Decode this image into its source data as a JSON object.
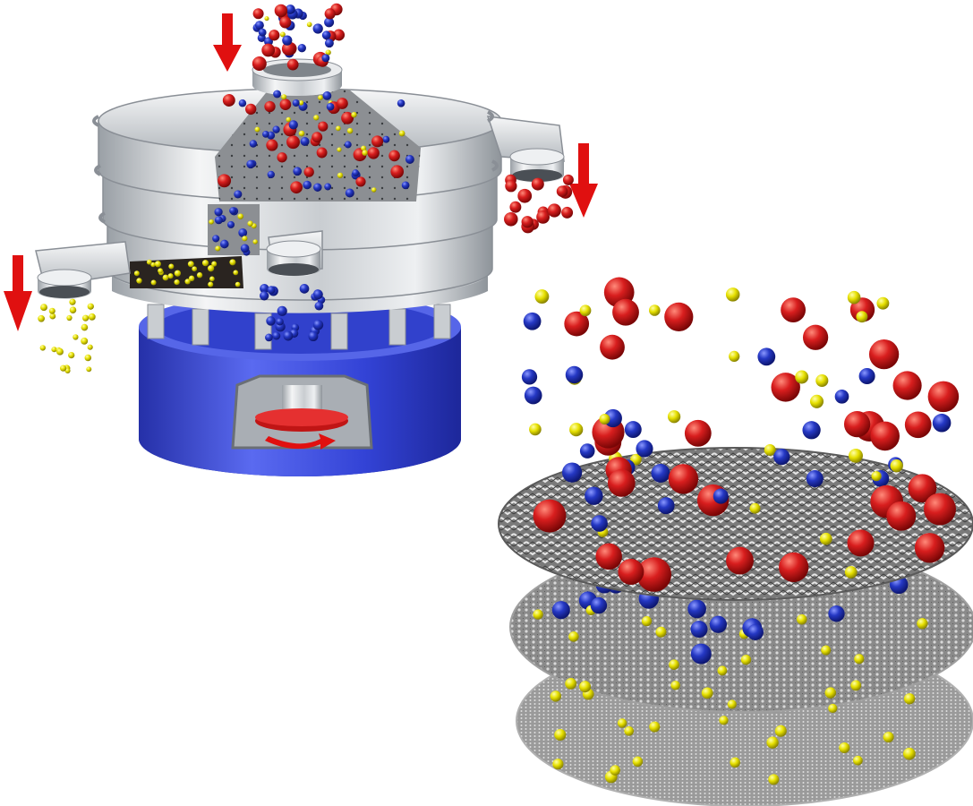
{
  "colors": {
    "background": "#ffffff",
    "arrow": "#e01010",
    "particle_large": "#cc1414",
    "particle_medium": "#1c2fb0",
    "particle_small": "#e3e000",
    "base_blue": "#2f3fd0",
    "steel_light": "#eef0f2",
    "steel_dark": "#8a8f96",
    "mesh": "#6b6b6b"
  },
  "diagram": {
    "subject": "vibrating-sieve-separator",
    "particle_types": [
      "large-red",
      "medium-blue",
      "small-yellow"
    ],
    "screen_layers": 3,
    "flow_arrows": 3,
    "rotation_arrows": 1
  },
  "icons": {
    "feed_arrow": "down-arrow-icon",
    "outlet_arrow": "down-arrow-icon",
    "motor_arrow": "rotation-arrow-icon"
  }
}
